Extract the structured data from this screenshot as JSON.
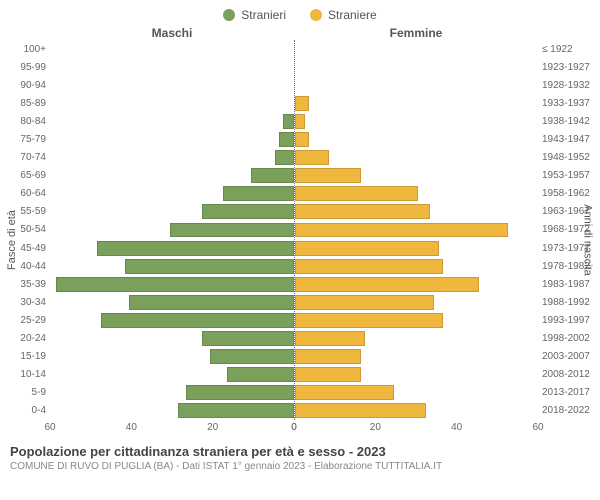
{
  "legend": {
    "male": {
      "label": "Stranieri",
      "color": "#7ba05b"
    },
    "female": {
      "label": "Straniere",
      "color": "#f0b73f"
    }
  },
  "headers": {
    "male": "Maschi",
    "female": "Femmine"
  },
  "axis": {
    "left_label": "Fasce di età",
    "right_label": "Anni di nascita",
    "xmax": 60,
    "xticks_left": [
      60,
      40,
      20,
      0
    ],
    "xticks_right": [
      0,
      20,
      40,
      60
    ]
  },
  "rows": [
    {
      "age": "100+",
      "birth": "≤ 1922",
      "m": 0,
      "f": 0
    },
    {
      "age": "95-99",
      "birth": "1923-1927",
      "m": 0,
      "f": 0
    },
    {
      "age": "90-94",
      "birth": "1928-1932",
      "m": 0,
      "f": 0
    },
    {
      "age": "85-89",
      "birth": "1933-1937",
      "m": 0,
      "f": 3
    },
    {
      "age": "80-84",
      "birth": "1938-1942",
      "m": 2,
      "f": 2
    },
    {
      "age": "75-79",
      "birth": "1943-1947",
      "m": 3,
      "f": 3
    },
    {
      "age": "70-74",
      "birth": "1948-1952",
      "m": 4,
      "f": 8
    },
    {
      "age": "65-69",
      "birth": "1953-1957",
      "m": 10,
      "f": 16
    },
    {
      "age": "60-64",
      "birth": "1958-1962",
      "m": 17,
      "f": 30
    },
    {
      "age": "55-59",
      "birth": "1963-1967",
      "m": 22,
      "f": 33
    },
    {
      "age": "50-54",
      "birth": "1968-1972",
      "m": 30,
      "f": 52
    },
    {
      "age": "45-49",
      "birth": "1973-1977",
      "m": 48,
      "f": 35
    },
    {
      "age": "40-44",
      "birth": "1978-1982",
      "m": 41,
      "f": 36
    },
    {
      "age": "35-39",
      "birth": "1983-1987",
      "m": 58,
      "f": 45
    },
    {
      "age": "30-34",
      "birth": "1988-1992",
      "m": 40,
      "f": 34
    },
    {
      "age": "25-29",
      "birth": "1993-1997",
      "m": 47,
      "f": 36
    },
    {
      "age": "20-24",
      "birth": "1998-2002",
      "m": 22,
      "f": 17
    },
    {
      "age": "15-19",
      "birth": "2003-2007",
      "m": 20,
      "f": 16
    },
    {
      "age": "10-14",
      "birth": "2008-2012",
      "m": 16,
      "f": 16
    },
    {
      "age": "5-9",
      "birth": "2013-2017",
      "m": 26,
      "f": 24
    },
    {
      "age": "0-4",
      "birth": "2018-2022",
      "m": 28,
      "f": 32
    }
  ],
  "title": "Popolazione per cittadinanza straniera per età e sesso - 2023",
  "subtitle": "COMUNE DI RUVO DI PUGLIA (BA) - Dati ISTAT 1° gennaio 2023 - Elaborazione TUTTITALIA.IT",
  "colors": {
    "background": "#ffffff",
    "text": "#555555",
    "subtext": "#888888"
  }
}
